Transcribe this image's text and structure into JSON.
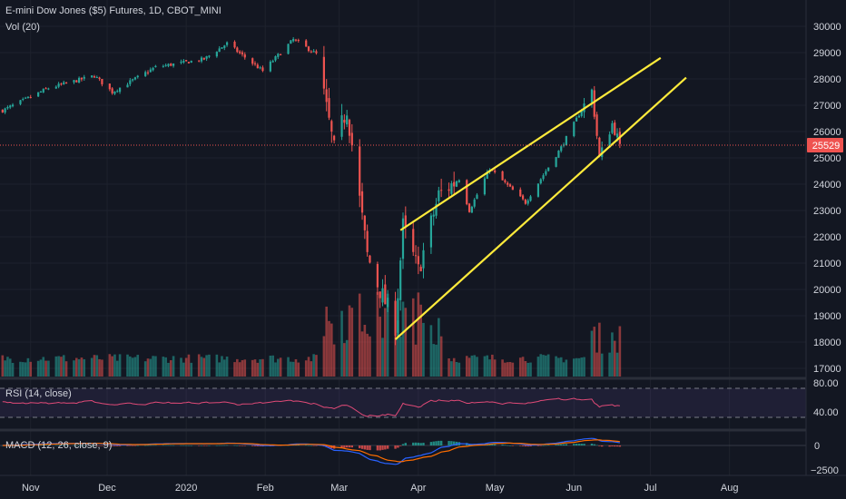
{
  "header": {
    "symbol": "E-mini Dow Jones ($5) Futures, 1D, CBOT_MINI",
    "volume_label": "Vol (20)"
  },
  "indicators": {
    "rsi_label": "RSI (14, close)",
    "macd_label": "MACD (12, 26, close, 9)"
  },
  "price_axis": {
    "ticks": [
      "30000",
      "29000",
      "28000",
      "27000",
      "26000",
      "25000",
      "24000",
      "23000",
      "22000",
      "21000",
      "20000",
      "19000",
      "18000",
      "17000"
    ],
    "last_price": "25529"
  },
  "rsi_axis": {
    "ticks": [
      "80.00",
      "40.00"
    ]
  },
  "macd_axis": {
    "ticks": [
      "0",
      "−2500"
    ]
  },
  "time_axis": {
    "ticks": [
      "Nov",
      "Dec",
      "2020",
      "Feb",
      "Mar",
      "Apr",
      "May",
      "Jun",
      "Jul",
      "Aug"
    ]
  },
  "colors": {
    "background": "#131722",
    "up": "#26a69a",
    "down": "#ef5350",
    "trendline": "#ffeb3b",
    "rsi": "#e04a77",
    "macd": "#2962ff",
    "signal": "#ff6d00"
  },
  "chart_data": {
    "type": "candlestick",
    "title": "E-mini Dow Jones ($5) Futures, 1D, CBOT_MINI",
    "ylim": [
      17000,
      30000
    ],
    "x_range": [
      "2019-10-20",
      "2020-08-31"
    ],
    "price_keyframes": [
      [
        "2019-10-21",
        26800
      ],
      [
        "2019-11-08",
        27650
      ],
      [
        "2019-11-26",
        28120
      ],
      [
        "2019-12-03",
        27500
      ],
      [
        "2019-12-20",
        28450
      ],
      [
        "2020-01-08",
        28750
      ],
      [
        "2020-01-17",
        29350
      ],
      [
        "2020-01-31",
        28300
      ],
      [
        "2020-02-12",
        29500
      ],
      [
        "2020-02-21",
        28950
      ],
      [
        "2020-02-28",
        25300
      ],
      [
        "2020-03-04",
        26900
      ],
      [
        "2020-03-12",
        21300
      ],
      [
        "2020-03-16",
        20200
      ],
      [
        "2020-03-23",
        18600
      ],
      [
        "2020-03-26",
        22400
      ],
      [
        "2020-04-01",
        20700
      ],
      [
        "2020-04-09",
        23600
      ],
      [
        "2020-04-17",
        24200
      ],
      [
        "2020-04-21",
        23000
      ],
      [
        "2020-04-29",
        24600
      ],
      [
        "2020-05-13",
        23300
      ],
      [
        "2020-05-27",
        25400
      ],
      [
        "2020-06-08",
        27550
      ],
      [
        "2020-06-11",
        25000
      ],
      [
        "2020-06-16",
        26300
      ],
      [
        "2020-06-19",
        25529
      ]
    ],
    "trendlines": [
      {
        "from": [
          "2020-03-25",
          22250
        ],
        "to": [
          "2020-07-05",
          28800
        ]
      },
      {
        "from": [
          "2020-03-23",
          18100
        ],
        "to": [
          "2020-07-15",
          28050
        ]
      }
    ],
    "last_price": 25529,
    "rsi_range": [
      0,
      100
    ],
    "rsi_levels": [
      70,
      30
    ],
    "macd_range": [
      -3100,
      700
    ]
  }
}
